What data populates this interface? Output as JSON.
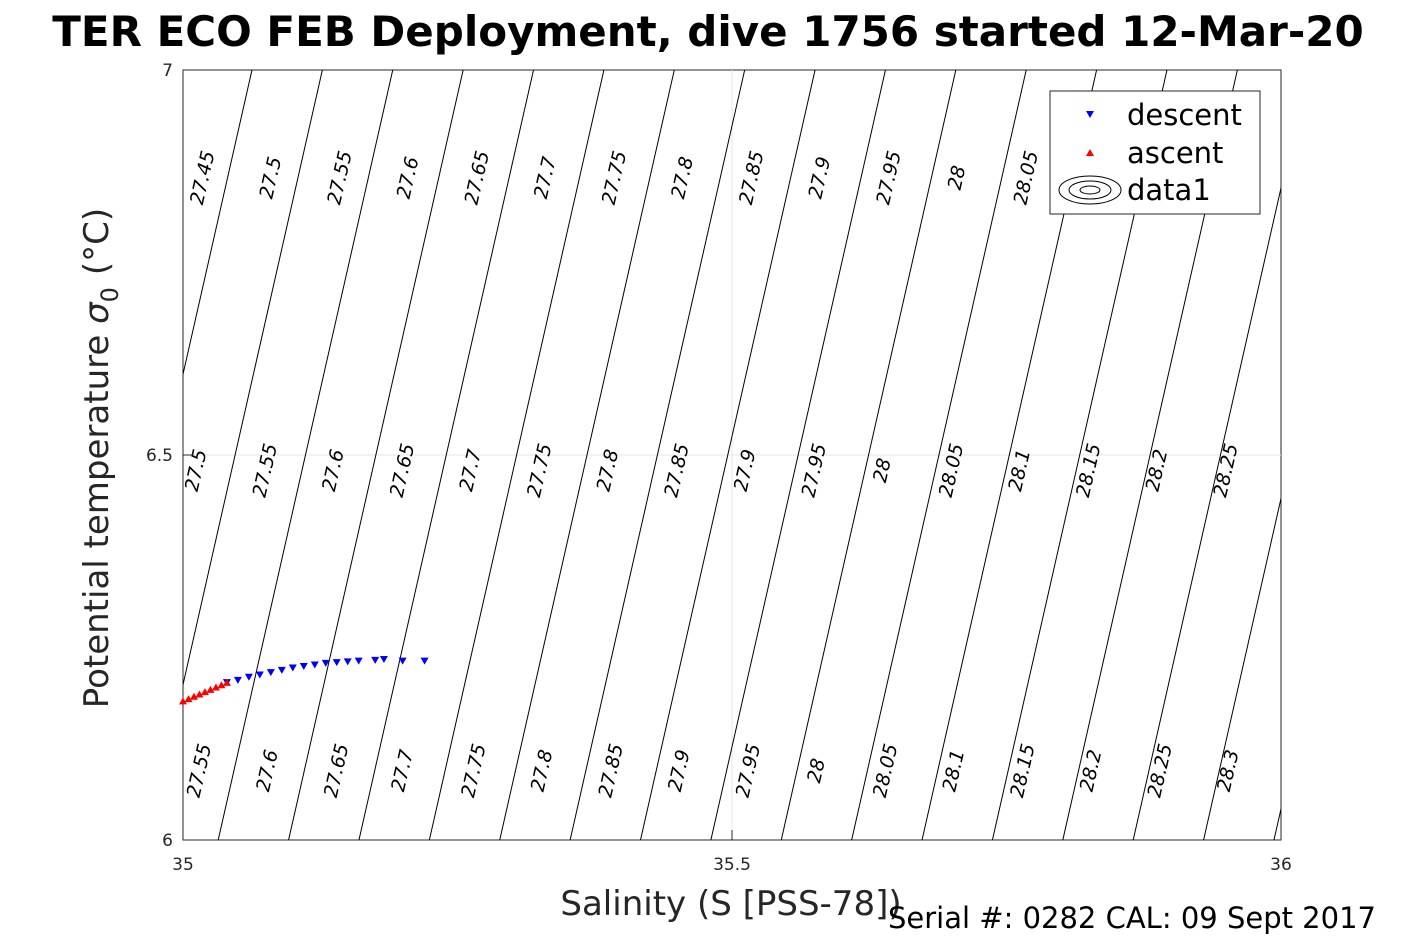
{
  "chart_data": {
    "type": "scatter",
    "title": "TER ECO FEB Deployment, dive 1756 started 12-Mar-20",
    "xlabel": "Salinity (S [PSS-78])",
    "ylabel_main": "Potential temperature",
    "ylabel_symbol": "σ",
    "ylabel_subscript": "0",
    "ylabel_unit": "(°C)",
    "xlim": [
      35,
      36
    ],
    "ylim": [
      6,
      7
    ],
    "xticks": [
      35,
      35.5,
      36
    ],
    "xtick_labels": [
      "35",
      "35.5",
      "36"
    ],
    "yticks": [
      6,
      6.5,
      7
    ],
    "ytick_labels": [
      "6",
      "6.5",
      "7"
    ],
    "grid": true,
    "legend_placement": "top-right",
    "series": [
      {
        "name": "descent",
        "marker": "triangle-down",
        "color": "#0000ff",
        "x": [
          35.04,
          35.05,
          35.06,
          35.07,
          35.08,
          35.09,
          35.1,
          35.11,
          35.12,
          35.13,
          35.14,
          35.15,
          35.16,
          35.175,
          35.183,
          35.2,
          35.22
        ],
        "y": [
          6.205,
          6.208,
          6.212,
          6.215,
          6.218,
          6.221,
          6.224,
          6.226,
          6.228,
          6.23,
          6.231,
          6.232,
          6.233,
          6.234,
          6.235,
          6.233,
          6.233
        ]
      },
      {
        "name": "ascent",
        "marker": "triangle-up",
        "color": "#ff0000",
        "x": [
          35.0,
          35.005,
          35.01,
          35.015,
          35.02,
          35.025,
          35.03,
          35.035,
          35.04
        ],
        "y": [
          6.18,
          6.183,
          6.186,
          6.189,
          6.192,
          6.195,
          6.198,
          6.201,
          6.204
        ]
      },
      {
        "name": "data1",
        "type": "contour",
        "color": "#000000",
        "levels": [
          27.45,
          27.5,
          27.55,
          27.6,
          27.65,
          27.7,
          27.75,
          27.8,
          27.85,
          27.9,
          27.95,
          28,
          28.05,
          28.1,
          28.15,
          28.2,
          28.25,
          28.3
        ]
      }
    ],
    "contour_label_rows": [
      {
        "y": 6.86,
        "labels": [
          {
            "x": 35.018,
            "text": "27.45"
          },
          {
            "x": 35.08,
            "text": "27.5"
          },
          {
            "x": 35.143,
            "text": "27.55"
          },
          {
            "x": 35.205,
            "text": "27.6"
          },
          {
            "x": 35.268,
            "text": "27.65"
          },
          {
            "x": 35.33,
            "text": "27.7"
          },
          {
            "x": 35.393,
            "text": "27.75"
          },
          {
            "x": 35.455,
            "text": "27.8"
          },
          {
            "x": 35.518,
            "text": "27.85"
          },
          {
            "x": 35.58,
            "text": "27.9"
          },
          {
            "x": 35.643,
            "text": "27.95"
          },
          {
            "x": 35.705,
            "text": "28"
          },
          {
            "x": 35.768,
            "text": "28.05"
          }
        ]
      },
      {
        "y": 6.48,
        "labels": [
          {
            "x": 35.012,
            "text": "27.5"
          },
          {
            "x": 35.075,
            "text": "27.55"
          },
          {
            "x": 35.137,
            "text": "27.6"
          },
          {
            "x": 35.2,
            "text": "27.65"
          },
          {
            "x": 35.262,
            "text": "27.7"
          },
          {
            "x": 35.325,
            "text": "27.75"
          },
          {
            "x": 35.387,
            "text": "27.8"
          },
          {
            "x": 35.45,
            "text": "27.85"
          },
          {
            "x": 35.512,
            "text": "27.9"
          },
          {
            "x": 35.575,
            "text": "27.95"
          },
          {
            "x": 35.637,
            "text": "28"
          },
          {
            "x": 35.7,
            "text": "28.05"
          },
          {
            "x": 35.762,
            "text": "28.1"
          },
          {
            "x": 35.825,
            "text": "28.15"
          },
          {
            "x": 35.887,
            "text": "28.2"
          },
          {
            "x": 35.95,
            "text": "28.25"
          }
        ]
      },
      {
        "y": 6.09,
        "labels": [
          {
            "x": 35.015,
            "text": "27.55"
          },
          {
            "x": 35.077,
            "text": "27.6"
          },
          {
            "x": 35.14,
            "text": "27.65"
          },
          {
            "x": 35.2,
            "text": "27.7"
          },
          {
            "x": 35.265,
            "text": "27.75"
          },
          {
            "x": 35.327,
            "text": "27.8"
          },
          {
            "x": 35.39,
            "text": "27.85"
          },
          {
            "x": 35.452,
            "text": "27.9"
          },
          {
            "x": 35.515,
            "text": "27.95"
          },
          {
            "x": 35.577,
            "text": "28"
          },
          {
            "x": 35.64,
            "text": "28.05"
          },
          {
            "x": 35.702,
            "text": "28.1"
          },
          {
            "x": 35.765,
            "text": "28.15"
          },
          {
            "x": 35.827,
            "text": "28.2"
          },
          {
            "x": 35.89,
            "text": "28.25"
          },
          {
            "x": 35.952,
            "text": "28.3"
          }
        ]
      }
    ]
  },
  "footer": {
    "serial": "Serial #: 0282  CAL: 09 Sept 2017"
  }
}
